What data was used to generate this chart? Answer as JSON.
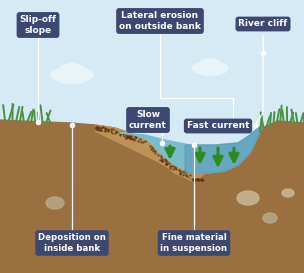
{
  "sky_color": "#d5eaf5",
  "ground_color": "#9b7040",
  "ground_alt": "#7a5530",
  "deposit_color": "#c0955a",
  "water_color": "#7bbccc",
  "water_deep": "#5a9ab8",
  "grass_color": "#4a9040",
  "arrow_color": "#2d8a20",
  "cloud_color": "#e8f4f8",
  "label_bg": "#3d4870",
  "label_fg": "#ffffff",
  "rock_color": "#b8a888",
  "rock_alt": "#c8b898",
  "dot_color": "#5a3010",
  "line_color": "#ffffff",
  "labels": {
    "slip_off": "Slip-off\nslope",
    "lateral": "Lateral erosion\non outside bank",
    "river_cliff": "River cliff",
    "slow": "Slow\ncurrent",
    "fast": "Fast current",
    "deposition": "Deposition on\ninside bank",
    "fine": "Fine material\nin suspension"
  },
  "figsize": [
    3.04,
    2.73
  ],
  "dpi": 100
}
